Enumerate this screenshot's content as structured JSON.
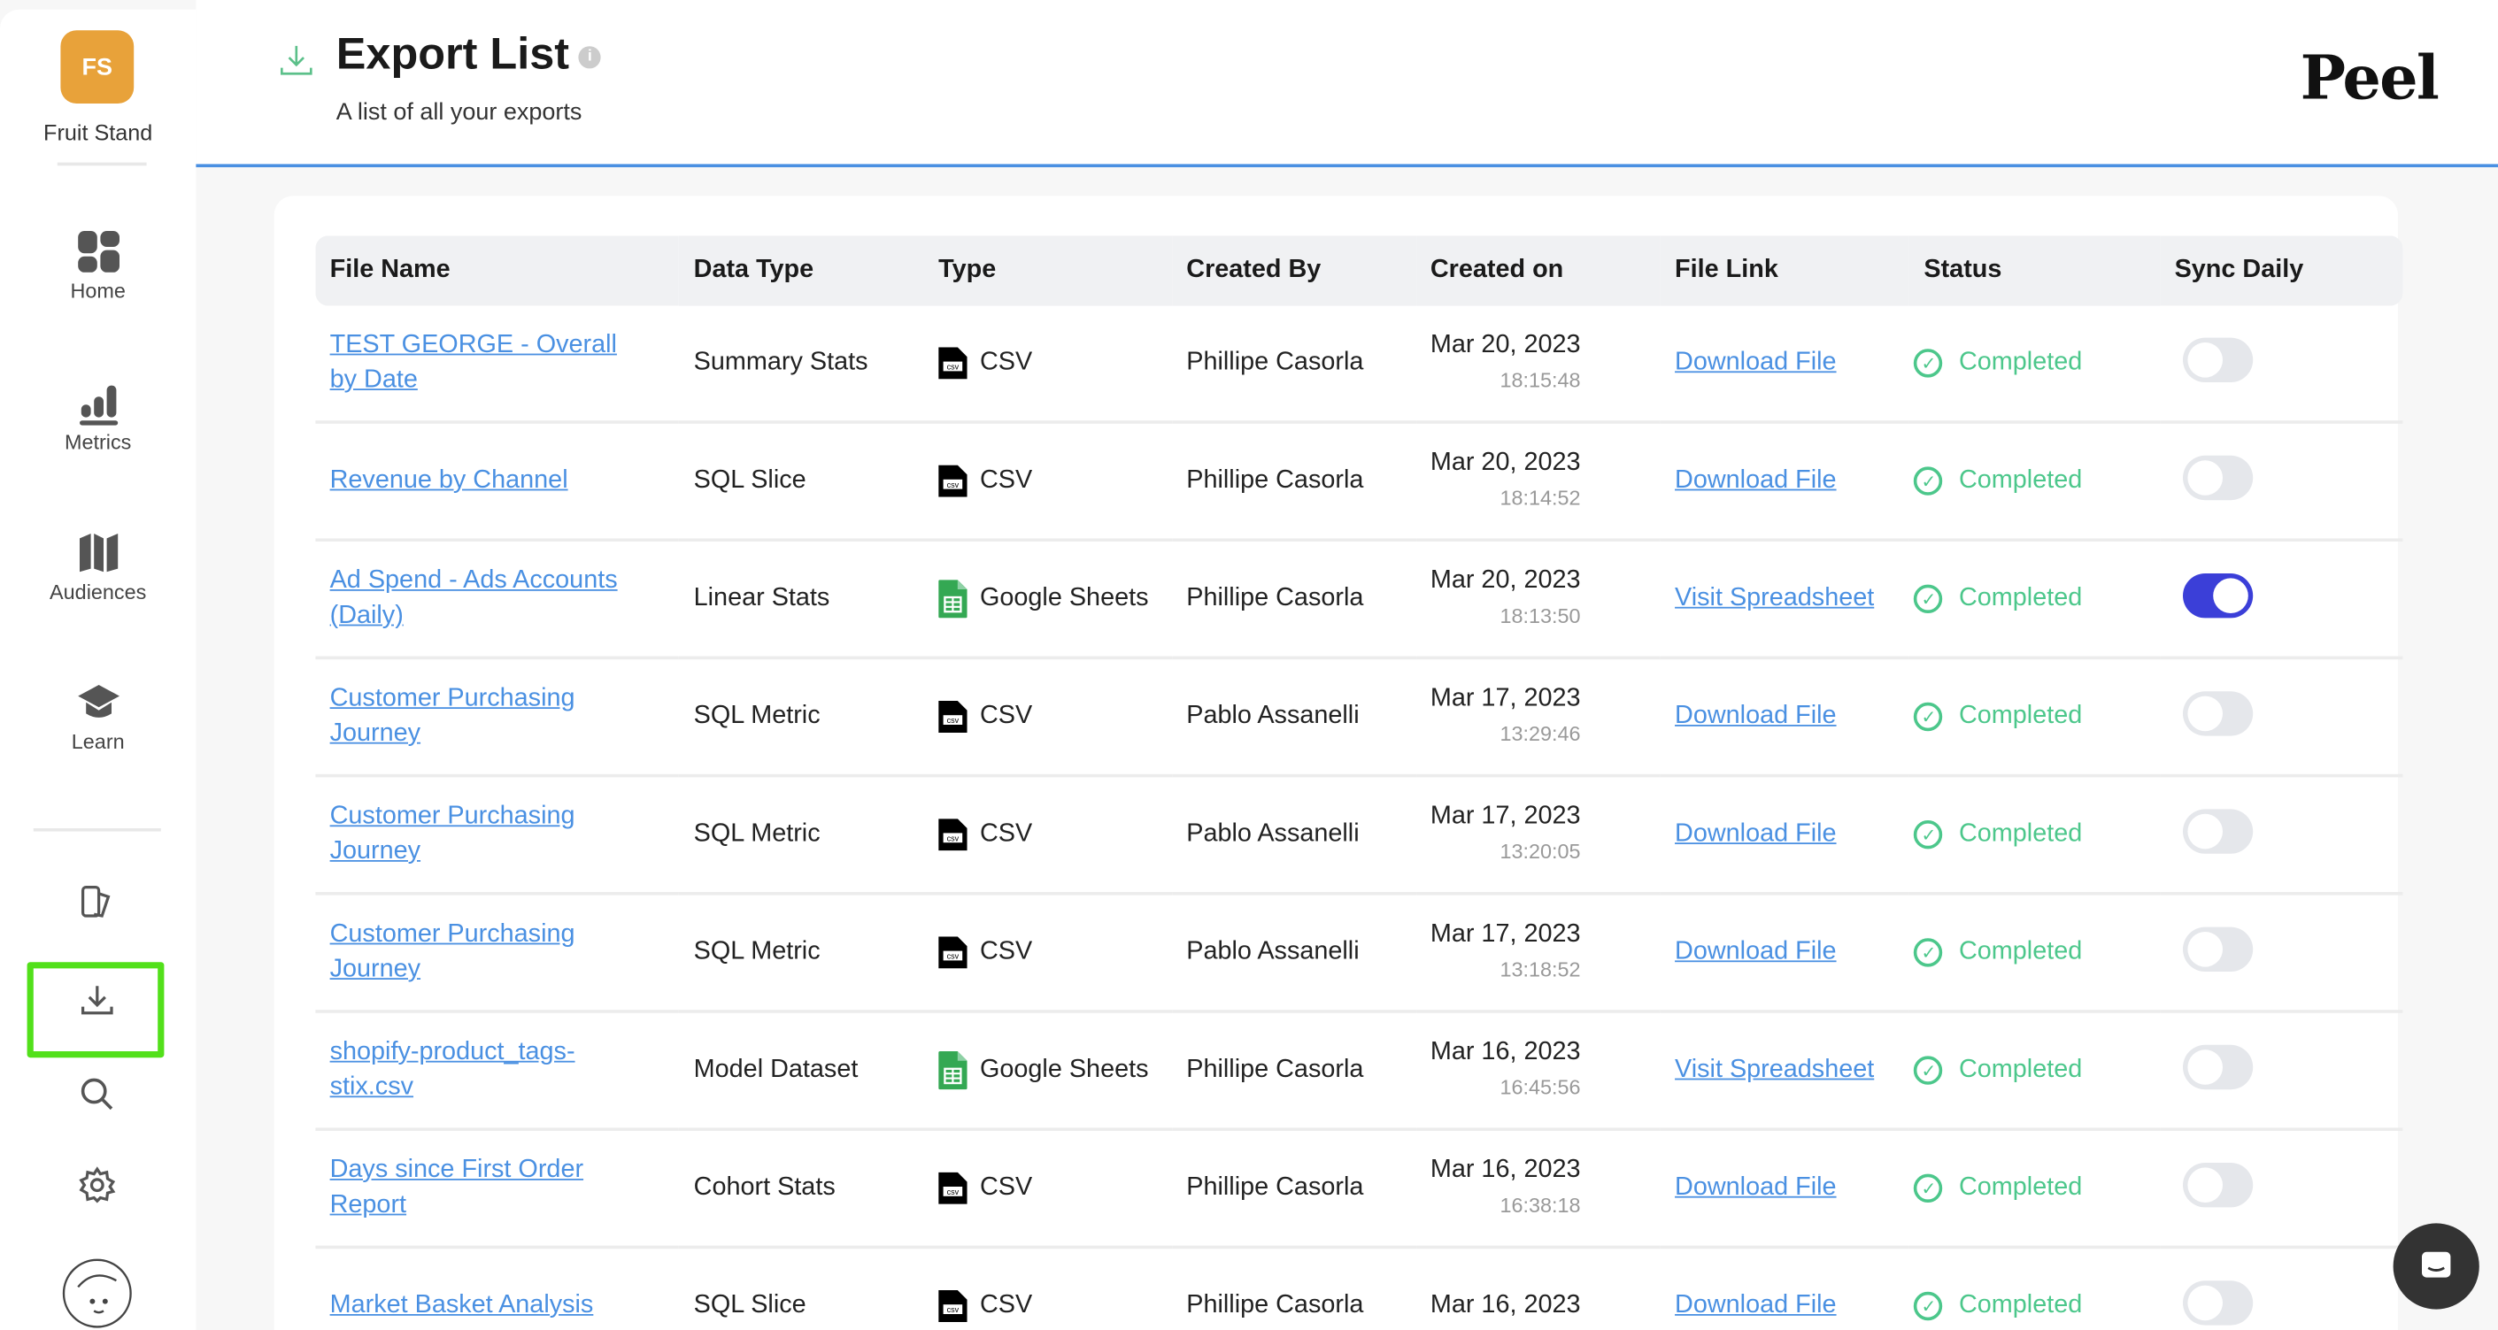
{
  "sidebar": {
    "org_initials": "FS",
    "org_name": "Fruit Stand",
    "brand_color": "#e8a23a",
    "items": [
      {
        "label": "Home",
        "icon": "grid-icon"
      },
      {
        "label": "Metrics",
        "icon": "bar-chart-icon"
      },
      {
        "label": "Audiences",
        "icon": "map-icon"
      },
      {
        "label": "Learn",
        "icon": "graduation-cap-icon"
      }
    ],
    "tools": [
      "reports-icon",
      "download-icon",
      "search-icon",
      "gear-icon",
      "avatar"
    ],
    "active_tool": "download-icon"
  },
  "header": {
    "title": "Export List",
    "subtitle": "A list of all your exports",
    "logo": "Peel"
  },
  "table": {
    "columns": [
      "File Name",
      "Data Type",
      "Type",
      "Created By",
      "Created on",
      "File Link",
      "Status",
      "Sync Daily"
    ],
    "rows": [
      {
        "file_name": "TEST GEORGE - Overall by Date",
        "data_type": "Summary Stats",
        "type": "CSV",
        "created_by": "Phillipe Casorla",
        "date": "Mar 20, 2023",
        "time": "18:15:48",
        "link": "Download File",
        "status": "Completed",
        "sync": false
      },
      {
        "file_name": "Revenue by Channel",
        "data_type": "SQL Slice",
        "type": "CSV",
        "created_by": "Phillipe Casorla",
        "date": "Mar 20, 2023",
        "time": "18:14:52",
        "link": "Download File",
        "status": "Completed",
        "sync": false
      },
      {
        "file_name": "Ad Spend - Ads Accounts (Daily)",
        "data_type": "Linear Stats",
        "type": "Google Sheets",
        "created_by": "Phillipe Casorla",
        "date": "Mar 20, 2023",
        "time": "18:13:50",
        "link": "Visit Spreadsheet",
        "status": "Completed",
        "sync": true
      },
      {
        "file_name": "Customer Purchasing Journey",
        "data_type": "SQL Metric",
        "type": "CSV",
        "created_by": "Pablo Assanelli",
        "date": "Mar 17, 2023",
        "time": "13:29:46",
        "link": "Download File",
        "status": "Completed",
        "sync": false
      },
      {
        "file_name": "Customer Purchasing Journey",
        "data_type": "SQL Metric",
        "type": "CSV",
        "created_by": "Pablo Assanelli",
        "date": "Mar 17, 2023",
        "time": "13:20:05",
        "link": "Download File",
        "status": "Completed",
        "sync": false
      },
      {
        "file_name": "Customer Purchasing Journey",
        "data_type": "SQL Metric",
        "type": "CSV",
        "created_by": "Pablo Assanelli",
        "date": "Mar 17, 2023",
        "time": "13:18:52",
        "link": "Download File",
        "status": "Completed",
        "sync": false
      },
      {
        "file_name": "shopify-product_tags-stix.csv",
        "data_type": "Model Dataset",
        "type": "Google Sheets",
        "created_by": "Phillipe Casorla",
        "date": "Mar 16, 2023",
        "time": "16:45:56",
        "link": "Visit Spreadsheet",
        "status": "Completed",
        "sync": false
      },
      {
        "file_name": "Days since First Order Report",
        "data_type": "Cohort Stats",
        "type": "CSV",
        "created_by": "Phillipe Casorla",
        "date": "Mar 16, 2023",
        "time": "16:38:18",
        "link": "Download File",
        "status": "Completed",
        "sync": false
      },
      {
        "file_name": "Market Basket Analysis",
        "data_type": "SQL Slice",
        "type": "CSV",
        "created_by": "Phillipe Casorla",
        "date": "Mar 16, 2023",
        "time": "",
        "link": "Download File",
        "status": "Completed",
        "sync": false
      }
    ]
  },
  "colors": {
    "accent": "#4a90e2",
    "status": "#4cc78b",
    "toggle_on": "#3b3fd8",
    "highlight": "#52e01a"
  }
}
